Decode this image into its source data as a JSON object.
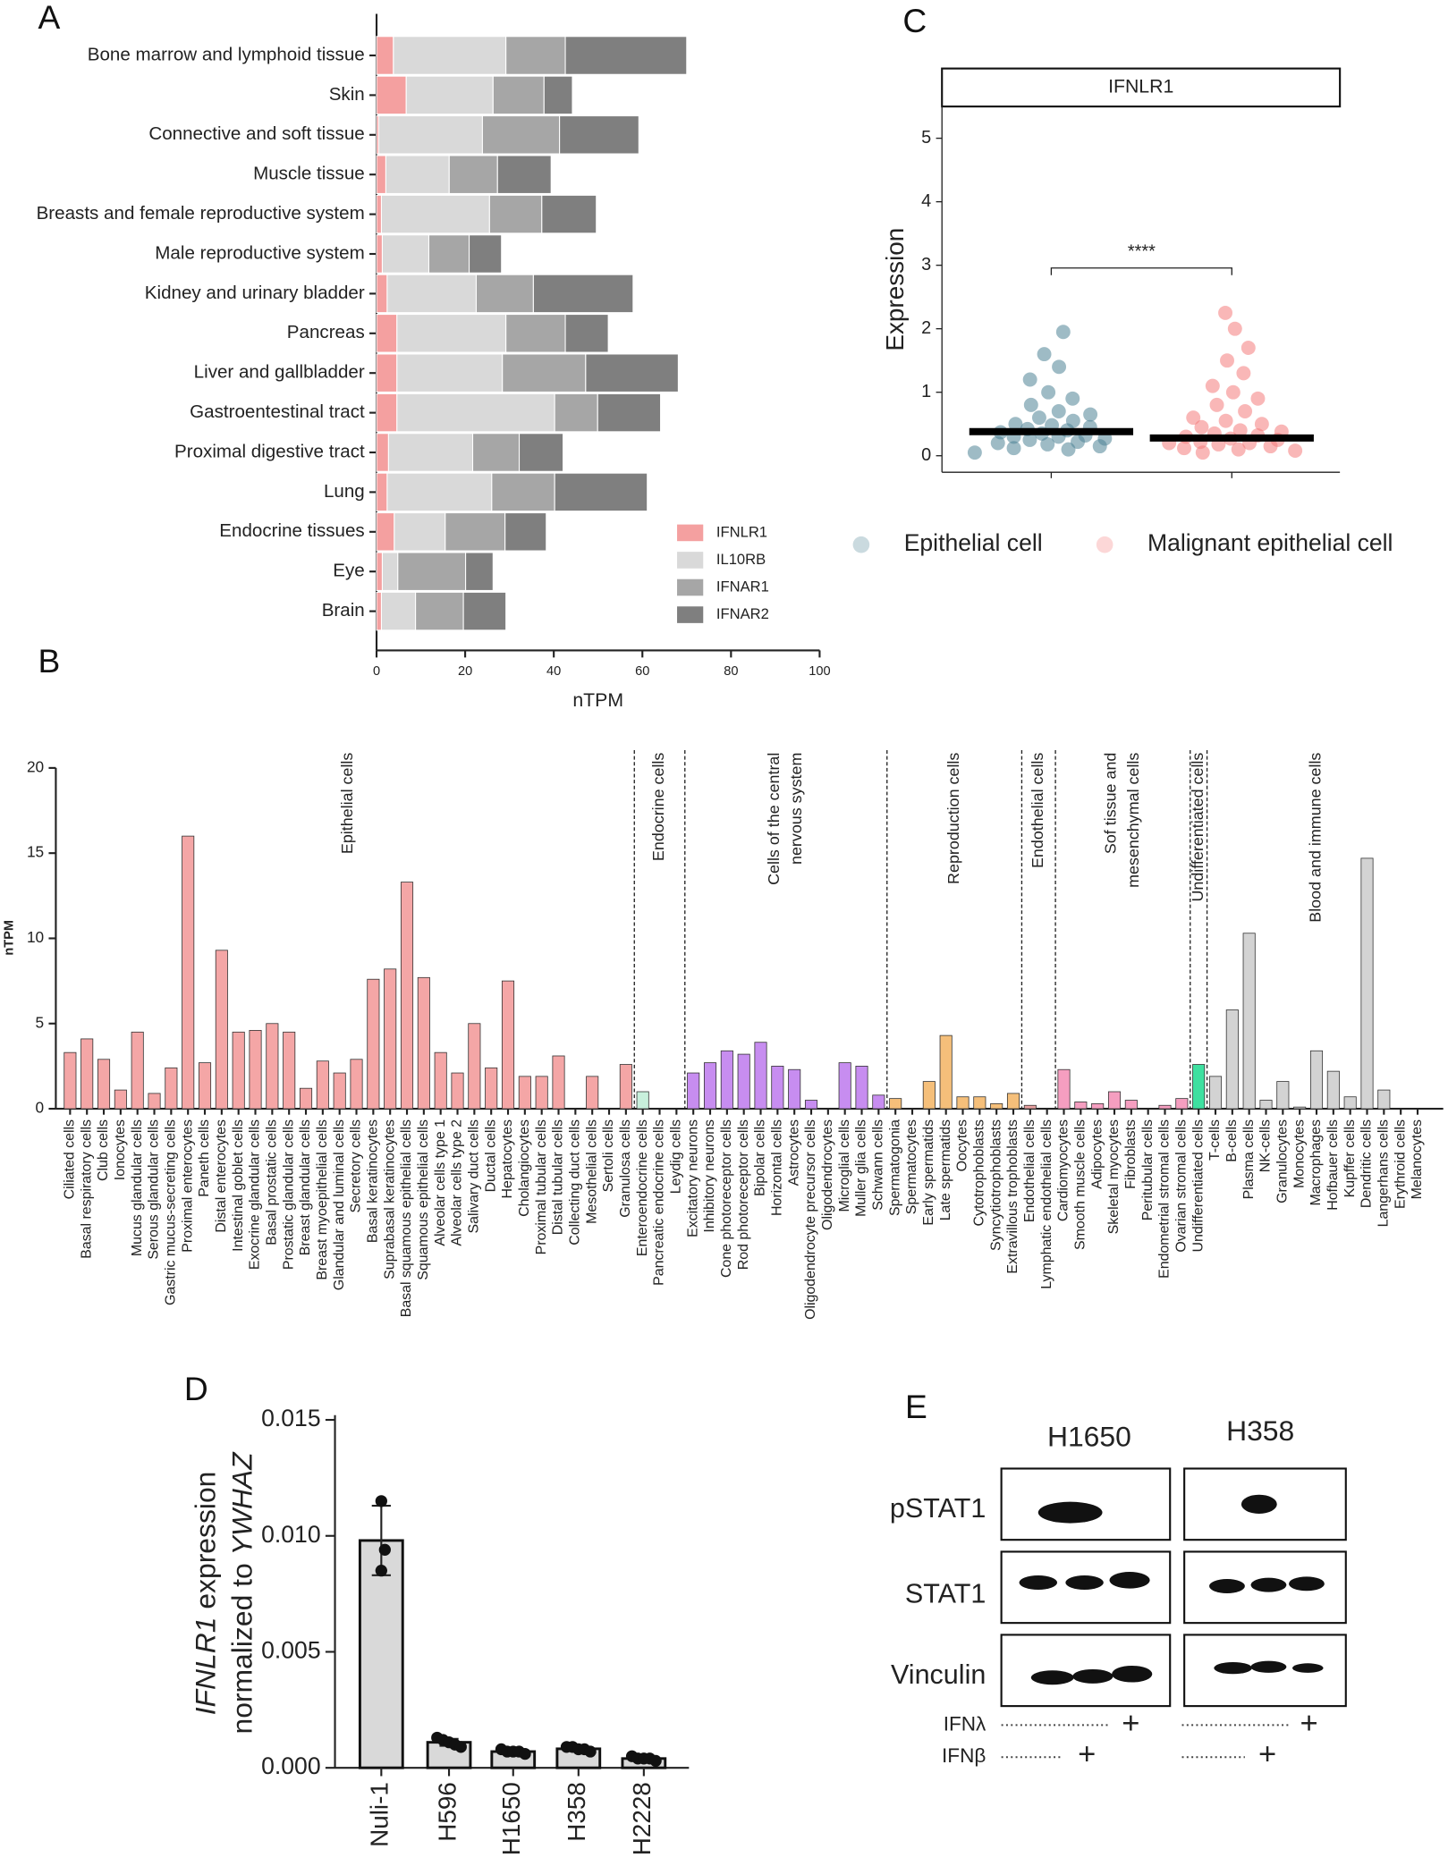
{
  "chart_data": [
    {
      "panel": "A",
      "type": "barh",
      "stacked": true,
      "xlabel": "nTPM",
      "xlim": [
        0,
        100
      ],
      "xticks": [
        0,
        20,
        40,
        60,
        80,
        100
      ],
      "legend": "lower right",
      "categories": [
        "Bone marrow and lymphoid tissue",
        "Skin",
        "Connective and soft tissue",
        "Muscle tissue",
        "Breasts and female reproductive system",
        "Male reproductive system",
        "Kidney and urinary bladder",
        "Pancreas",
        "Liver and gallbladder",
        "Gastroentestinal tract",
        "Proximal digestive tract",
        "Lung",
        "Endocrine tissues",
        "Eye",
        "Brain"
      ],
      "series": [
        {
          "name": "IFNLR1",
          "color": "#f4a0a0",
          "values": [
            3.8,
            6.7,
            0.5,
            2.1,
            1.1,
            1.3,
            2.4,
            4.6,
            4.6,
            4.6,
            2.7,
            2.4,
            4.0,
            1.3,
            1.1
          ]
        },
        {
          "name": "IL10RB",
          "color": "#d9d9d9",
          "values": [
            25.4,
            19.6,
            23.4,
            14.3,
            24.4,
            10.5,
            20.1,
            24.6,
            23.8,
            35.6,
            19.0,
            23.6,
            11.5,
            3.5,
            7.7
          ]
        },
        {
          "name": "IFNAR1",
          "color": "#a6a6a6",
          "values": [
            13.4,
            11.5,
            17.4,
            10.9,
            11.8,
            9.1,
            12.9,
            13.4,
            18.8,
            9.7,
            10.5,
            14.2,
            13.5,
            15.3,
            10.8
          ]
        },
        {
          "name": "IFNAR2",
          "color": "#7f7f7f",
          "values": [
            27.4,
            6.4,
            17.9,
            12.1,
            12.3,
            7.3,
            22.5,
            9.7,
            20.9,
            14.2,
            9.9,
            20.9,
            9.3,
            6.2,
            9.6
          ]
        }
      ]
    },
    {
      "panel": "B",
      "type": "bar",
      "ylabel": "nTPM",
      "ylim": [
        0,
        20
      ],
      "yticks": [
        0,
        5,
        10,
        15,
        20
      ],
      "groups": [
        {
          "label": [
            "Epithelial cells"
          ],
          "color": "#f4a6a6",
          "categories": [
            "Ciliated cells",
            "Basal respiratory cells",
            "Club cells",
            "Ionocytes",
            "Mucus glandular cells",
            "Serous glandular cells",
            "Gastric mucus-secreting cells",
            "Proximal enterocytes",
            "Paneth cells",
            "Distal enterocytes",
            "Intestinal goblet cells",
            "Exocrine glandular cells",
            "Basal prostatic cells",
            "Prostatic glandular cells",
            "Breast glandular cells",
            "Breast myoepithelial cells",
            "Glandular and luminal cells",
            "Secretory cells",
            "Basal keratinocytes",
            "Suprabasal keratinocytes",
            "Basal squamous epithelial cells",
            "Squamous epithelial cells",
            "Alveolar cells type 1",
            "Alveolar cells type 2",
            "Salivary duct cells",
            "Ductal cells",
            "Hepatocytes",
            "Cholangiocytes",
            "Proximal tubular cells",
            "Distal tubular cells",
            "Collecting duct cells",
            "Mesothelial cells",
            "Sertoli cells",
            "Granulosa cells"
          ],
          "values": [
            3.3,
            4.1,
            2.9,
            1.1,
            4.5,
            0.9,
            2.4,
            16.0,
            2.7,
            9.3,
            4.5,
            4.6,
            5.0,
            4.5,
            1.2,
            2.8,
            2.1,
            2.9,
            7.6,
            8.2,
            13.3,
            7.7,
            3.3,
            2.1,
            5.0,
            2.4,
            7.5,
            1.9,
            1.9,
            3.1,
            0,
            1.9,
            0,
            2.6
          ]
        },
        {
          "label": [
            "Endocrine cells"
          ],
          "color": "#c8f0dc",
          "categories": [
            "Enteroendocrine cells",
            "Pancreatic endocrine cells",
            "Leydig cells"
          ],
          "values": [
            1.0,
            0,
            0
          ]
        },
        {
          "label": [
            "Cells of the central",
            "nervous system"
          ],
          "color": "#c78df0",
          "categories": [
            "Excitatory neurons",
            "Inhibitory neurons",
            "Cone photoreceptor cells",
            "Rod photoreceptor cells",
            "Bipolar cells",
            "Horizontal cells",
            "Astrocytes",
            "Oligodendrocyte precursor cells",
            "Oligodendrocytes",
            "Microglial cells",
            "Muller glia cells",
            "Schwann cells"
          ],
          "values": [
            2.1,
            2.7,
            3.4,
            3.2,
            3.9,
            2.5,
            2.3,
            0.5,
            0,
            2.7,
            2.5,
            0.8
          ]
        },
        {
          "label": [
            "Reproduction cells"
          ],
          "color": "#f5bf7a",
          "categories": [
            "Spermatogonia",
            "Spermatocytes",
            "Early spermatids",
            "Late spermatids",
            "Oocytes",
            "Cytotrophoblasts",
            "Syncytiotrophoblasts",
            "Extravillous trophoblasts"
          ],
          "values": [
            0.6,
            0,
            1.6,
            4.3,
            0.7,
            0.7,
            0.3,
            0.9
          ]
        },
        {
          "label": [
            "Endothelial cells"
          ],
          "color": "#e8a0a0",
          "categories": [
            "Endothelial cells",
            "Lymphatic endothelial cells"
          ],
          "values": [
            0.2,
            0
          ]
        },
        {
          "label": [
            "Sof tissue and",
            "mesenchymal cells"
          ],
          "color": "#f59ec0",
          "categories": [
            "Cardiomyocytes",
            "Smooth muscle cells",
            "Adipocytes",
            "Skeletal myocytes",
            "Fibroblasts",
            "Peritubular cells",
            "Endometrial stromal cells",
            "Ovarian stromal cells"
          ],
          "values": [
            2.3,
            0.4,
            0.3,
            1.0,
            0.5,
            0,
            0.2,
            0.6
          ]
        },
        {
          "label": [
            "Undifferentiated cells"
          ],
          "color": "#3ee0a0",
          "categories": [
            "Undifferentiated cells"
          ],
          "values": [
            2.6
          ]
        },
        {
          "label": [
            "Blood and immune cells"
          ],
          "color": "#d3d3d3",
          "categories": [
            "T-cells",
            "B-cells",
            "Plasma cells",
            "NK-cells",
            "Granulocytes",
            "Monocytes",
            "Macrophages",
            "Hofbauer cells",
            "Kupffer cells",
            "Dendritic cells",
            "Langerhans cells",
            "Erythroid cells",
            "Melanocytes"
          ],
          "values": [
            1.9,
            5.8,
            10.3,
            0.5,
            1.6,
            0.1,
            3.4,
            2.2,
            0.7,
            14.7,
            1.1,
            0,
            0
          ]
        }
      ]
    },
    {
      "panel": "C",
      "type": "strip",
      "title": "IFNLR1",
      "ylabel": "Expression",
      "annotation": "****",
      "ylim": [
        -0.26,
        5.5
      ],
      "yticks": [
        0,
        1,
        2,
        3,
        4,
        5
      ],
      "legend": "bottom",
      "series": [
        {
          "name": "Epithelial cell",
          "color": "#4f8496",
          "median": 0.38,
          "values": [
            0.05,
            0.1,
            0.12,
            0.15,
            0.18,
            0.2,
            0.22,
            0.25,
            0.27,
            0.3,
            0.3,
            0.32,
            0.35,
            0.37,
            0.4,
            0.42,
            0.45,
            0.48,
            0.5,
            0.55,
            0.6,
            0.65,
            0.7,
            0.8,
            0.9,
            1.0,
            1.2,
            1.4,
            1.6,
            1.95
          ]
        },
        {
          "name": "Malignant epithelial cell",
          "color": "#f47c7c",
          "median": 0.28,
          "values": [
            0.05,
            0.08,
            0.1,
            0.12,
            0.15,
            0.18,
            0.2,
            0.2,
            0.22,
            0.25,
            0.27,
            0.3,
            0.32,
            0.35,
            0.38,
            0.4,
            0.45,
            0.5,
            0.55,
            0.6,
            0.7,
            0.8,
            0.9,
            1.0,
            1.1,
            1.3,
            1.5,
            1.7,
            2.0,
            2.25
          ]
        }
      ]
    },
    {
      "panel": "D",
      "type": "bar",
      "ylabel": [
        [
          "IFNLR1",
          " expression"
        ],
        [
          "normalized to ",
          "YWHAZ"
        ]
      ],
      "color": "#d9d9d9",
      "ylim": [
        0,
        0.015
      ],
      "yticks": [
        {
          "value": 0,
          "label": "0.000"
        },
        {
          "value": 0.005,
          "label": "0.005"
        },
        {
          "value": 0.01,
          "label": "0.010"
        },
        {
          "value": 0.015,
          "label": "0.015"
        }
      ],
      "categories": [
        "Nuli-1",
        "H596",
        "H1650",
        "H358",
        "H2228"
      ],
      "values": [
        0.0098,
        0.0011,
        0.0007,
        0.00082,
        0.0004
      ],
      "errors": [
        0.0015,
        0.00015,
        0.0001,
        0.0001,
        0.0001
      ],
      "points": [
        [
          0.0115,
          0.0094,
          0.0085
        ],
        [
          0.0013,
          0.0012,
          0.0011,
          0.001,
          0.0009
        ],
        [
          0.0008,
          0.0007,
          0.0007,
          0.0007,
          0.0006
        ],
        [
          0.0009,
          0.0009,
          0.0008,
          0.0008,
          0.0007
        ],
        [
          0.0005,
          0.0004,
          0.0004,
          0.0004,
          0.0003
        ]
      ]
    }
  ],
  "blot": {
    "panel": "E",
    "cell_lines": [
      "H1650",
      "H358"
    ],
    "proteins": [
      "pSTAT1",
      "STAT1",
      "Vinculin"
    ],
    "treatments": [
      {
        "name": "IFNλ",
        "mark": "+"
      },
      {
        "name": "IFNβ",
        "mark": "+"
      }
    ]
  }
}
